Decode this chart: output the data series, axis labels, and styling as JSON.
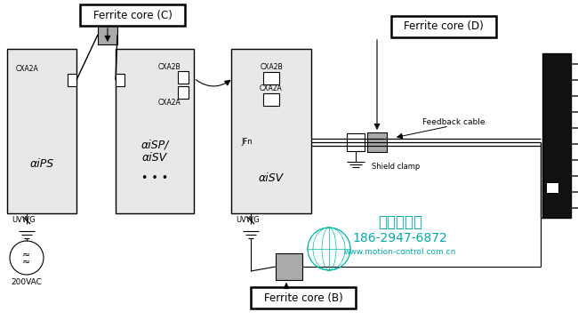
{
  "bg_color": "#ffffff",
  "light_gray_box": "#e8e8e8",
  "gray_ferrite": "#aaaaaa",
  "black_motor": "#111111",
  "label_ferrite_C": "Ferrite core (C)",
  "label_ferrite_D": "Ferrite core (D)",
  "label_ferrite_B": "Ferrite core (B)",
  "label_feedback": "Feedback cable",
  "label_shield": "Shield clamp",
  "label_iPS": "αiPS",
  "label_iSP": "αiSP/\nαiSV",
  "label_iSV": "αiSV",
  "label_CXA2A": "CXA2A",
  "label_CXA2B": "CXA2B",
  "label_UVWG1": "UVWG",
  "label_UVWG2": "UVWG",
  "label_200VAC": "200VAC",
  "label_JFn": "JFn",
  "watermark_line1": "西安德伍拓",
  "watermark_line2": "186-2947-6872",
  "watermark_line3": "www.motion-control.com.cn",
  "watermark_color": "#00aaaa",
  "globe_color": "#00bbaa"
}
